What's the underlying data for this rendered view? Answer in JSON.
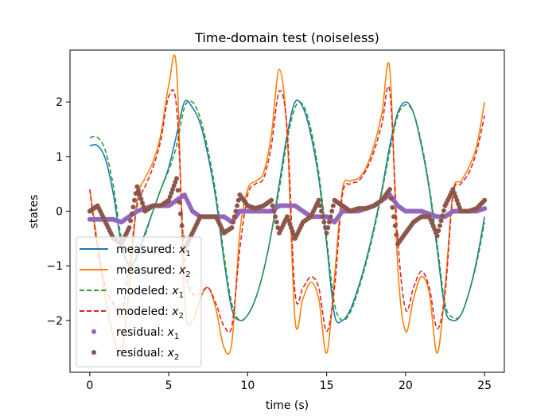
{
  "chart_data": {
    "type": "line",
    "title": "Time-domain test (noiseless)",
    "xlabel": "time (s)",
    "ylabel": "states",
    "xlim": [
      -1.25,
      26.25
    ],
    "ylim": [
      -2.95,
      2.95
    ],
    "xticks": [
      0,
      5,
      10,
      15,
      20,
      25
    ],
    "yticks": [
      -2,
      -1,
      0,
      1,
      2
    ],
    "xtick_labels": [
      "0",
      "5",
      "10",
      "15",
      "20",
      "25"
    ],
    "ytick_labels": [
      "−2",
      "−1",
      "0",
      "1",
      "2"
    ],
    "grid": false,
    "legend_position": "lower-left",
    "x": [
      0,
      0.5,
      1,
      1.5,
      2,
      2.5,
      3,
      3.5,
      4,
      4.5,
      5,
      5.5,
      6,
      6.5,
      7,
      7.5,
      8,
      8.5,
      9,
      9.5,
      10,
      10.5,
      11,
      11.5,
      12,
      12.5,
      13,
      13.5,
      14,
      14.5,
      15,
      15.5,
      16,
      16.5,
      17,
      17.5,
      18,
      18.5,
      19,
      19.5,
      20,
      20.5,
      21,
      21.5,
      22,
      22.5,
      23,
      23.5,
      24,
      24.5,
      25
    ],
    "series": [
      {
        "name": "measured: x1",
        "legend_main": "measured: ",
        "legend_var": "x",
        "legend_sub": "1",
        "color": "#1f77b4",
        "style": "solid",
        "values": [
          1.2,
          1.2,
          0.95,
          0.3,
          -0.6,
          -1.0,
          -0.8,
          -0.4,
          0.0,
          0.4,
          0.8,
          1.4,
          2.0,
          1.9,
          1.6,
          1.0,
          0.2,
          -0.9,
          -1.8,
          -2.0,
          -1.9,
          -1.6,
          -1.1,
          -0.4,
          0.5,
          1.4,
          2.0,
          1.9,
          1.4,
          0.6,
          -0.6,
          -1.9,
          -2.0,
          -1.8,
          -1.4,
          -0.9,
          -0.3,
          0.4,
          1.2,
          1.8,
          2.0,
          1.8,
          1.2,
          0.4,
          -0.7,
          -1.8,
          -2.0,
          -1.9,
          -1.5,
          -0.9,
          -0.1
        ]
      },
      {
        "name": "measured: x2",
        "legend_main": "measured: ",
        "legend_var": "x",
        "legend_sub": "2",
        "color": "#ff7f0e",
        "style": "solid",
        "values": [
          0.4,
          -0.6,
          -1.6,
          -2.3,
          -2.6,
          -1.4,
          0.2,
          0.6,
          0.9,
          1.4,
          2.3,
          2.6,
          -1.6,
          -2.0,
          -1.6,
          -1.4,
          -1.8,
          -2.5,
          -2.4,
          -0.4,
          0.4,
          0.55,
          0.7,
          1.4,
          2.6,
          1.4,
          -2.0,
          -1.6,
          -1.3,
          -1.6,
          -2.6,
          -1.2,
          0.4,
          0.55,
          0.6,
          0.8,
          1.2,
          1.8,
          2.6,
          -1.0,
          -2.2,
          -1.6,
          -1.2,
          -1.5,
          -2.6,
          -1.4,
          0.35,
          0.55,
          0.8,
          1.2,
          2.0
        ]
      },
      {
        "name": "modeled: x1",
        "legend_main": "modeled: ",
        "legend_var": "x",
        "legend_sub": "1",
        "color": "#2ca02c",
        "style": "dashed",
        "values": [
          1.35,
          1.35,
          1.1,
          0.45,
          -0.5,
          -1.0,
          -0.85,
          -0.45,
          0.0,
          0.4,
          0.75,
          1.2,
          1.9,
          2.0,
          1.7,
          1.1,
          0.3,
          -0.8,
          -1.7,
          -2.0,
          -1.9,
          -1.6,
          -1.1,
          -0.4,
          0.4,
          1.3,
          1.9,
          1.95,
          1.5,
          0.7,
          -0.5,
          -1.7,
          -2.0,
          -1.85,
          -1.45,
          -0.95,
          -0.35,
          0.35,
          1.1,
          1.75,
          1.95,
          1.8,
          1.25,
          0.45,
          -0.6,
          -1.7,
          -1.95,
          -1.9,
          -1.5,
          -0.95,
          -0.2
        ]
      },
      {
        "name": "modeled: x2",
        "legend_main": "modeled: ",
        "legend_var": "x",
        "legend_sub": "2",
        "color": "#d62728",
        "style": "dashed",
        "values": [
          0.4,
          -0.7,
          -1.4,
          -1.7,
          -1.9,
          -1.0,
          0.1,
          0.45,
          0.8,
          1.3,
          2.1,
          1.9,
          -0.9,
          -1.5,
          -1.5,
          -1.4,
          -1.7,
          -2.1,
          -2.1,
          -0.7,
          0.3,
          0.5,
          0.6,
          1.2,
          2.2,
          1.5,
          -1.5,
          -1.4,
          -1.2,
          -1.4,
          -2.2,
          -1.4,
          0.3,
          0.5,
          0.55,
          0.75,
          1.1,
          1.6,
          2.2,
          -0.5,
          -1.8,
          -1.4,
          -1.1,
          -1.4,
          -2.15,
          -1.5,
          0.3,
          0.5,
          0.7,
          1.1,
          1.75
        ]
      }
    ],
    "residuals": [
      {
        "name": "residual: x1",
        "legend_main": "residual: ",
        "legend_var": "x",
        "legend_sub": "1",
        "color": "#9467bd",
        "style": "dots",
        "values": [
          -0.15,
          -0.15,
          -0.15,
          -0.15,
          -0.2,
          -0.1,
          0.0,
          0.05,
          0.1,
          0.1,
          0.1,
          0.2,
          0.3,
          0.0,
          -0.1,
          -0.1,
          -0.1,
          -0.1,
          -0.2,
          0.0,
          0.0,
          0.0,
          0.0,
          0.0,
          0.1,
          0.1,
          0.1,
          0.0,
          -0.1,
          -0.1,
          -0.1,
          -0.2,
          0.0,
          0.0,
          0.0,
          0.05,
          0.1,
          0.2,
          0.3,
          0.1,
          0.0,
          0.0,
          0.0,
          -0.05,
          -0.1,
          -0.1,
          0.0,
          0.0,
          0.0,
          0.0,
          0.05
        ]
      },
      {
        "name": "residual: x2",
        "legend_main": "residual: ",
        "legend_var": "x",
        "legend_sub": "2",
        "color": "#8c564b",
        "style": "dots",
        "values": [
          0.0,
          0.1,
          -0.2,
          -0.5,
          -0.6,
          -0.3,
          0.45,
          0.0,
          0.1,
          0.1,
          0.2,
          0.6,
          -0.7,
          -0.4,
          -0.1,
          -0.1,
          -0.1,
          -0.4,
          -0.3,
          0.3,
          0.1,
          0.05,
          0.1,
          0.2,
          -0.4,
          -0.1,
          -0.5,
          -0.2,
          -0.1,
          0.2,
          -0.4,
          0.2,
          0.1,
          0.0,
          0.05,
          0.05,
          0.1,
          0.2,
          0.4,
          -0.6,
          -0.4,
          -0.2,
          -0.1,
          -0.1,
          -0.45,
          0.1,
          0.4,
          0.0,
          0.0,
          0.05,
          0.2
        ]
      }
    ]
  }
}
